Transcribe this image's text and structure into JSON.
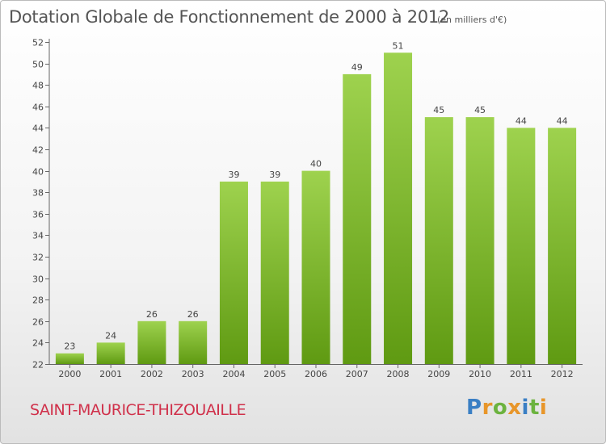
{
  "header": {
    "title": "Dotation Globale de Fonctionnement de 2000 à 2012",
    "unit": "(en milliers d'€)"
  },
  "footer": {
    "commune": "SAINT-MAURICE-THIZOUAILLE",
    "logo_letters": [
      "P",
      "r",
      "o",
      "x",
      "i",
      "t",
      "i"
    ],
    "logo_colors": [
      "#3a7fc4",
      "#e8962a",
      "#6cb33f",
      "#e8962a",
      "#3a7fc4",
      "#6cb33f",
      "#e8962a"
    ]
  },
  "colors": {
    "bar_top": "#9ed24e",
    "bar_bottom": "#5f9a12",
    "axis": "#666666",
    "grid": "#d0d0d0",
    "text": "#444444"
  },
  "chart_data": {
    "type": "bar",
    "title": "Dotation Globale de Fonctionnement de 2000 à 2012",
    "subtitle": "(en milliers d'€)",
    "xlabel": "",
    "ylabel": "",
    "categories": [
      "2000",
      "2001",
      "2002",
      "2003",
      "2004",
      "2005",
      "2006",
      "2007",
      "2008",
      "2009",
      "2010",
      "2011",
      "2012"
    ],
    "values": [
      23,
      24,
      26,
      26,
      39,
      39,
      40,
      49,
      51,
      45,
      45,
      44,
      44
    ],
    "data_labels": [
      "23",
      "24",
      "26",
      "26",
      "39",
      "39",
      "40",
      "49",
      "51",
      "45",
      "45",
      "44",
      "44"
    ],
    "ylim": [
      22,
      52
    ],
    "yticks": [
      22,
      24,
      26,
      28,
      30,
      32,
      34,
      36,
      38,
      40,
      42,
      44,
      46,
      48,
      50,
      52
    ],
    "grid": false,
    "legend": "none"
  }
}
